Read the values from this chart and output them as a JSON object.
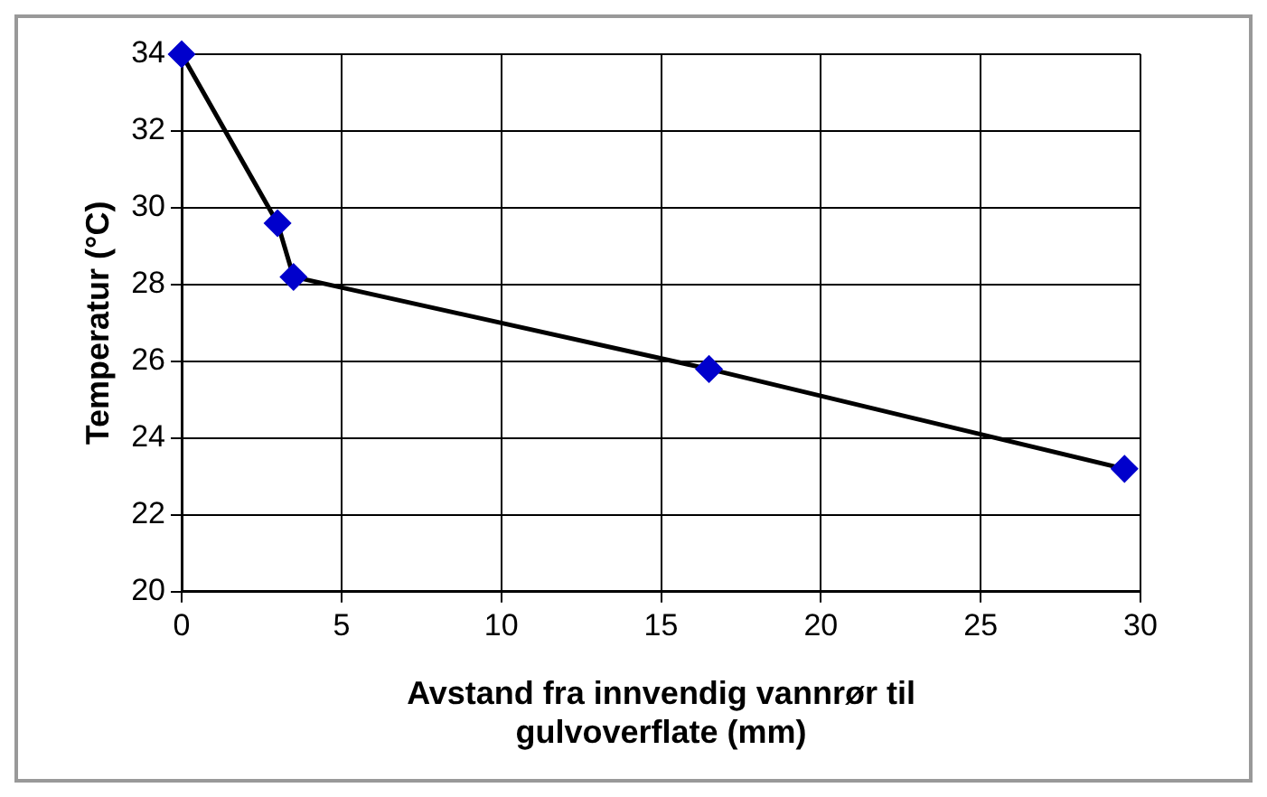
{
  "chart_data": {
    "type": "line",
    "xlabel": "Avstand fra innvendig vannrør til gulvoverflate (mm)",
    "ylabel": "Temperatur (°C)",
    "x": [
      0,
      3,
      3.5,
      16.5,
      29.5
    ],
    "series": [
      {
        "color": "#0000cc",
        "values": [
          34,
          29.6,
          28.2,
          25.8,
          23.2
        ]
      }
    ],
    "xlim": [
      0,
      30
    ],
    "xticks": [
      0,
      5,
      10,
      15,
      20,
      25,
      30
    ],
    "ylim": [
      20,
      34
    ],
    "yticks": [
      20,
      22,
      24,
      26,
      28,
      30,
      32,
      34
    ],
    "grid": true,
    "legend": false,
    "marker": "diamond",
    "line_style": "solid"
  }
}
